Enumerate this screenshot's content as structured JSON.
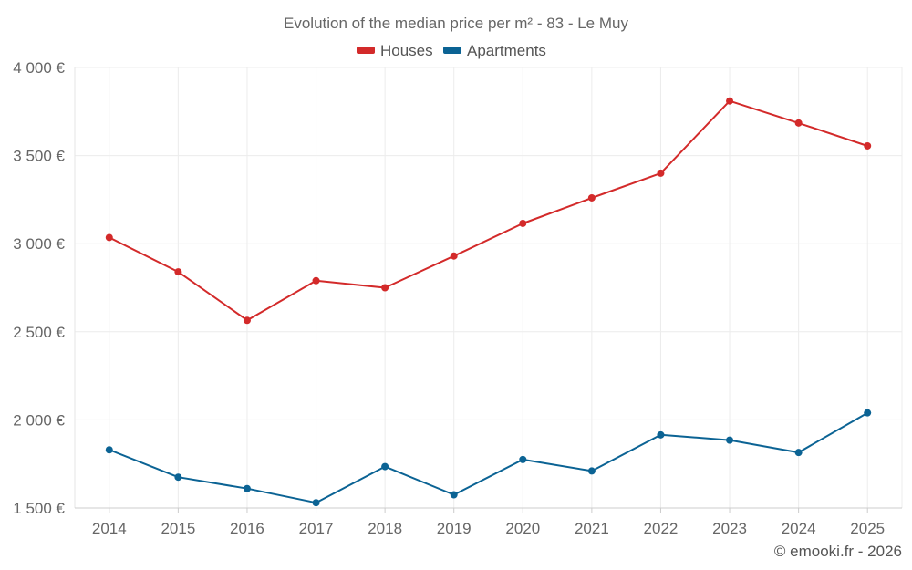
{
  "chart_data": {
    "type": "line",
    "title": "Evolution of the median price per m² - 83 - Le Muy",
    "categories": [
      "2014",
      "2015",
      "2016",
      "2017",
      "2018",
      "2019",
      "2020",
      "2021",
      "2022",
      "2023",
      "2024",
      "2025"
    ],
    "series": [
      {
        "name": "Houses",
        "color": "#d32a2a",
        "values": [
          3035,
          2840,
          2565,
          2790,
          2750,
          2930,
          3115,
          3260,
          3400,
          3810,
          3685,
          3555
        ]
      },
      {
        "name": "Apartments",
        "color": "#0b6394",
        "values": [
          1830,
          1675,
          1610,
          1530,
          1735,
          1575,
          1775,
          1710,
          1915,
          1885,
          1815,
          2040
        ]
      }
    ],
    "ylim": [
      1500,
      4000
    ],
    "yticks": [
      1500,
      2000,
      2500,
      3000,
      3500,
      4000
    ],
    "ytick_labels": [
      "1 500 €",
      "2 000 €",
      "2 500 €",
      "3 000 €",
      "3 500 €",
      "4 000 €"
    ],
    "xlabel": "",
    "ylabel": "",
    "grid": true,
    "legend_position": "top-center"
  },
  "credit": "© emooki.fr - 2026"
}
